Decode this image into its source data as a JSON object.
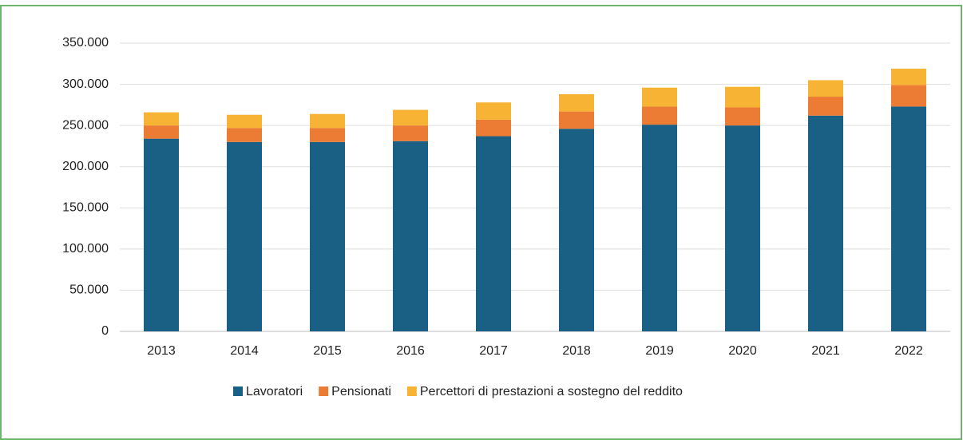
{
  "chart_data": {
    "type": "stacked_bar",
    "categories": [
      "2013",
      "2014",
      "2015",
      "2016",
      "2017",
      "2018",
      "2019",
      "2020",
      "2021",
      "2022"
    ],
    "series": [
      {
        "name": "Lavoratori",
        "color": "#1a5f84",
        "values": [
          234000,
          230000,
          230000,
          231000,
          237000,
          246000,
          251000,
          250000,
          262000,
          273000
        ]
      },
      {
        "name": "Pensionati",
        "color": "#ec7b33",
        "values": [
          16000,
          17000,
          17000,
          19000,
          20000,
          21000,
          22000,
          22000,
          23000,
          26000
        ]
      },
      {
        "name": "Percettori di prestazioni a sostegno del reddito",
        "color": "#f7b334",
        "values": [
          16000,
          16000,
          17000,
          19000,
          21000,
          21000,
          23000,
          25000,
          20000,
          20000
        ]
      }
    ],
    "ylim": [
      0,
      350000
    ],
    "yticks": [
      0,
      {
        "value": 50000,
        "label": "50.000"
      },
      {
        "value": 100000,
        "label": "100.000"
      },
      {
        "value": 150000,
        "label": "150.000"
      },
      {
        "value": 200000,
        "label": "200.000"
      },
      {
        "value": 250000,
        "label": "250.000"
      },
      {
        "value": 300000,
        "label": "300.000"
      },
      {
        "value": 350000,
        "label": "350.000"
      }
    ],
    "grid": true,
    "legend": "bottom"
  }
}
